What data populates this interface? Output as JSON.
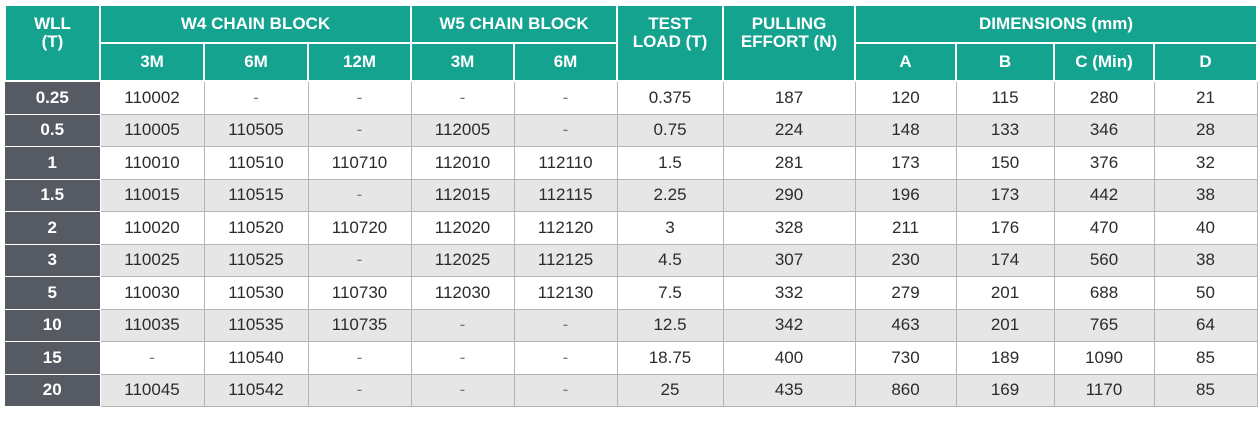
{
  "header": {
    "wll": "WLL",
    "wll_unit": "(T)",
    "w4_group": "W4 CHAIN BLOCK",
    "w5_group": "W5 CHAIN BLOCK",
    "test_load_1": "TEST",
    "test_load_2": "LOAD (T)",
    "pulling_1": "PULLING",
    "pulling_2": "EFFORT (N)",
    "dimensions": "DIMENSIONS (mm)",
    "w4_3m": "3M",
    "w4_6m": "6M",
    "w4_12m": "12M",
    "w5_3m": "3M",
    "w5_6m": "6M",
    "dim_a": "A",
    "dim_b": "B",
    "dim_c": "C (Min)",
    "dim_d": "D"
  },
  "rows": [
    {
      "wll": "0.25",
      "w4_3m": "110002",
      "w4_6m": "-",
      "w4_12m": "-",
      "w5_3m": "-",
      "w5_6m": "-",
      "test": "0.375",
      "pull": "187",
      "a": "120",
      "b": "115",
      "c": "280",
      "d": "21"
    },
    {
      "wll": "0.5",
      "w4_3m": "110005",
      "w4_6m": "110505",
      "w4_12m": "-",
      "w5_3m": "112005",
      "w5_6m": "-",
      "test": "0.75",
      "pull": "224",
      "a": "148",
      "b": "133",
      "c": "346",
      "d": "28"
    },
    {
      "wll": "1",
      "w4_3m": "110010",
      "w4_6m": "110510",
      "w4_12m": "110710",
      "w5_3m": "112010",
      "w5_6m": "112110",
      "test": "1.5",
      "pull": "281",
      "a": "173",
      "b": "150",
      "c": "376",
      "d": "32"
    },
    {
      "wll": "1.5",
      "w4_3m": "110015",
      "w4_6m": "110515",
      "w4_12m": "-",
      "w5_3m": "112015",
      "w5_6m": "112115",
      "test": "2.25",
      "pull": "290",
      "a": "196",
      "b": "173",
      "c": "442",
      "d": "38"
    },
    {
      "wll": "2",
      "w4_3m": "110020",
      "w4_6m": "110520",
      "w4_12m": "110720",
      "w5_3m": "112020",
      "w5_6m": "112120",
      "test": "3",
      "pull": "328",
      "a": "211",
      "b": "176",
      "c": "470",
      "d": "40"
    },
    {
      "wll": "3",
      "w4_3m": "110025",
      "w4_6m": "110525",
      "w4_12m": "-",
      "w5_3m": "112025",
      "w5_6m": "112125",
      "test": "4.5",
      "pull": "307",
      "a": "230",
      "b": "174",
      "c": "560",
      "d": "38"
    },
    {
      "wll": "5",
      "w4_3m": "110030",
      "w4_6m": "110530",
      "w4_12m": "110730",
      "w5_3m": "112030",
      "w5_6m": "112130",
      "test": "7.5",
      "pull": "332",
      "a": "279",
      "b": "201",
      "c": "688",
      "d": "50"
    },
    {
      "wll": "10",
      "w4_3m": "110035",
      "w4_6m": "110535",
      "w4_12m": "110735",
      "w5_3m": "-",
      "w5_6m": "-",
      "test": "12.5",
      "pull": "342",
      "a": "463",
      "b": "201",
      "c": "765",
      "d": "64"
    },
    {
      "wll": "15",
      "w4_3m": "-",
      "w4_6m": "110540",
      "w4_12m": "-",
      "w5_3m": "-",
      "w5_6m": "-",
      "test": "18.75",
      "pull": "400",
      "a": "730",
      "b": "189",
      "c": "1090",
      "d": "85"
    },
    {
      "wll": "20",
      "w4_3m": "110045",
      "w4_6m": "110542",
      "w4_12m": "-",
      "w5_3m": "-",
      "w5_6m": "-",
      "test": "25",
      "pull": "435",
      "a": "860",
      "b": "169",
      "c": "1170",
      "d": "85"
    }
  ],
  "colors": {
    "header_teal": "#13a38f",
    "wll_cell": "#555a63",
    "row_alt": "#e6e6e6"
  }
}
